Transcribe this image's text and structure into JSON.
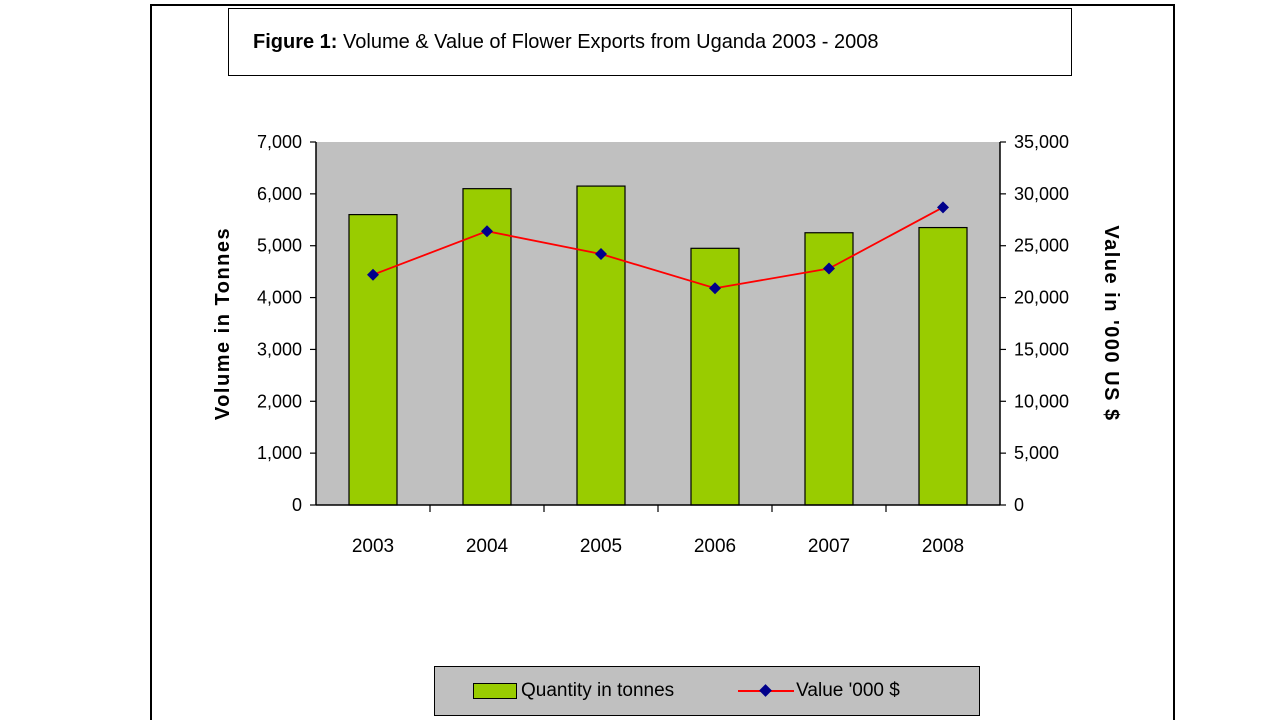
{
  "chart_data": {
    "type": "bar+line",
    "title_prefix": "Figure 1:",
    "title": "Volume & Value of Flower Exports from Uganda 2003 - 2008",
    "categories": [
      "2003",
      "2004",
      "2005",
      "2006",
      "2007",
      "2008"
    ],
    "series": [
      {
        "name": "Quantity in tonnes",
        "type": "bar",
        "axis": "left",
        "values": [
          5600,
          6100,
          6150,
          4950,
          5250,
          5350
        ],
        "color": "#99cc00"
      },
      {
        "name": "Value '000 $",
        "type": "line",
        "axis": "right",
        "values": [
          22200,
          26400,
          24200,
          20900,
          22800,
          28700
        ],
        "line_color": "#ff0000",
        "marker_color": "#00008b"
      }
    ],
    "ylabel": "Volume in Tonnes",
    "y2label": "Value in '000 US $",
    "ylim": [
      0,
      7000
    ],
    "y2lim": [
      0,
      35000
    ],
    "yticks": [
      "0",
      "1,000",
      "2,000",
      "3,000",
      "4,000",
      "5,000",
      "6,000",
      "7,000"
    ],
    "y2ticks": [
      "0",
      "5,000",
      "10,000",
      "15,000",
      "20,000",
      "25,000",
      "30,000",
      "35,000"
    ],
    "plot_background": "#c0c0c0",
    "legend_position": "bottom"
  }
}
